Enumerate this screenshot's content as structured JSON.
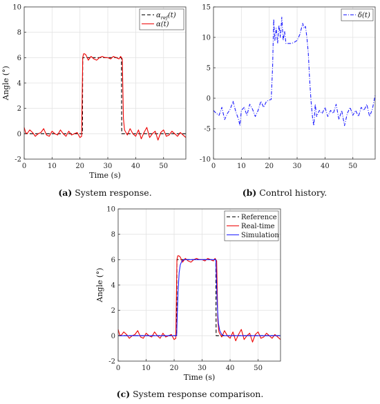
{
  "chart_data": [
    {
      "id": "a",
      "type": "line",
      "caption_tag": "(a)",
      "caption_text": " System response.",
      "xlabel": "Time (s)",
      "ylabel": "Angle (°)",
      "xlim": [
        0,
        58
      ],
      "ylim": [
        -2,
        10
      ],
      "xticks": [
        0,
        10,
        20,
        30,
        40,
        50
      ],
      "yticks": [
        -2,
        0,
        2,
        4,
        6,
        8,
        10
      ],
      "grid": true,
      "legend_position": "top-right",
      "series": [
        {
          "name": "α_ref(t)",
          "legend_base": "α",
          "legend_sub": "ref",
          "legend_tail": "(t)",
          "color": "#000000",
          "dash": "5,3",
          "x": [
            0,
            20.9,
            21.0,
            34.9,
            35.0,
            58
          ],
          "y": [
            0,
            0,
            6,
            6,
            0,
            0
          ]
        },
        {
          "name": "α(t)",
          "legend_base": "α",
          "legend_sub": "",
          "legend_tail": "(t)",
          "color": "#ee0000",
          "dash": "",
          "x": [
            0,
            0.5,
            1,
            2,
            3,
            4,
            5,
            6,
            7,
            8,
            9,
            10,
            11,
            12,
            13,
            14,
            15,
            16,
            17,
            18,
            19,
            20,
            20.6,
            21.0,
            21.3,
            21.7,
            22.2,
            23,
            24,
            25,
            26,
            27,
            28,
            29,
            30,
            31,
            32,
            33,
            34,
            34.6,
            34.9,
            35.2,
            35.6,
            36,
            37,
            38,
            39,
            40,
            41,
            42,
            43,
            44,
            45,
            46,
            47,
            48,
            49,
            50,
            51,
            52,
            53,
            54,
            55,
            56,
            57,
            58
          ],
          "y": [
            0.5,
            0.1,
            0.0,
            0.3,
            0.1,
            -0.2,
            0.0,
            0.1,
            0.4,
            -0.1,
            -0.2,
            0.2,
            0.0,
            -0.1,
            0.3,
            0.0,
            -0.2,
            0.2,
            -0.1,
            0.0,
            0.1,
            -0.3,
            -0.2,
            6.0,
            6.3,
            6.3,
            6.2,
            5.8,
            6.1,
            5.9,
            5.8,
            6.0,
            6.1,
            6.0,
            6.0,
            5.9,
            6.1,
            6.0,
            5.9,
            6.1,
            6.0,
            5.9,
            1.2,
            0.3,
            -0.1,
            0.4,
            0.0,
            -0.2,
            0.3,
            -0.4,
            0.1,
            0.5,
            -0.3,
            0.0,
            0.2,
            -0.5,
            0.1,
            0.3,
            -0.2,
            -0.1,
            0.2,
            0.0,
            -0.2,
            0.1,
            -0.1,
            -0.3
          ]
        }
      ]
    },
    {
      "id": "b",
      "type": "line",
      "caption_tag": "(b)",
      "caption_text": " Control history.",
      "xlabel": "",
      "ylabel": "",
      "xlim": [
        0,
        58
      ],
      "ylim": [
        -10,
        15
      ],
      "xticks": [
        0,
        10,
        20,
        30,
        40,
        50
      ],
      "yticks": [
        -10,
        -5,
        0,
        5,
        10,
        15
      ],
      "grid": true,
      "legend_position": "top-right",
      "series": [
        {
          "name": "δ(t)",
          "legend_base": "δ",
          "legend_sub": "",
          "legend_tail": "(t)",
          "color": "#1a1aff",
          "dash": "5,2,1,2",
          "x": [
            0,
            1,
            2,
            3,
            4,
            5,
            6,
            7,
            8,
            9,
            9.5,
            10,
            11,
            12,
            13,
            14,
            15,
            16,
            17,
            18,
            19,
            20,
            20.7,
            21.2,
            21.6,
            22.0,
            22.5,
            23,
            23.5,
            24,
            24.5,
            25,
            25.5,
            26,
            27,
            28,
            29,
            30,
            31,
            32,
            32.5,
            33,
            33.5,
            34,
            34.5,
            35,
            35.3,
            35.6,
            36,
            36.5,
            37,
            38,
            39,
            40,
            41,
            42,
            43,
            44,
            45,
            46,
            47,
            48,
            49,
            50,
            51,
            52,
            53,
            54,
            55,
            56,
            57,
            58
          ],
          "y": [
            -2.0,
            -2.5,
            -2.8,
            -1.5,
            -3.5,
            -2.5,
            -1.8,
            -0.5,
            -2.2,
            -3.5,
            -4.5,
            -2.0,
            -1.5,
            -2.8,
            -1.0,
            -1.8,
            -3.0,
            -2.0,
            -0.5,
            -1.5,
            -0.5,
            -0.3,
            -0.2,
            5.0,
            13.0,
            9.5,
            11.5,
            9.0,
            12.0,
            10.0,
            13.3,
            9.5,
            11.0,
            9.0,
            9.0,
            9.0,
            9.2,
            9.5,
            10.5,
            12.3,
            11.5,
            11.8,
            10.0,
            7.5,
            3.0,
            -0.5,
            -2.0,
            -3.5,
            -4.5,
            -1.0,
            -3.0,
            -2.0,
            -2.5,
            -1.5,
            -3.0,
            -2.0,
            -2.5,
            -1.0,
            -3.5,
            -2.0,
            -4.5,
            -2.5,
            -1.5,
            -2.8,
            -2.0,
            -3.0,
            -1.5,
            -2.0,
            -1.0,
            -3.0,
            -1.8,
            0.5
          ]
        }
      ]
    },
    {
      "id": "c",
      "type": "line",
      "caption_tag": "(c)",
      "caption_text": " System response comparison.",
      "xlabel": "Time (s)",
      "ylabel": "Angle (°)",
      "xlim": [
        0,
        58
      ],
      "ylim": [
        -2,
        10
      ],
      "xticks": [
        0,
        10,
        20,
        30,
        40,
        50
      ],
      "yticks": [
        -2,
        0,
        2,
        4,
        6,
        8,
        10
      ],
      "grid": true,
      "legend_position": "top-right",
      "series": [
        {
          "name": "Reference",
          "legend_base": "Reference",
          "legend_sub": "",
          "legend_tail": "",
          "color": "#000000",
          "dash": "5,3",
          "x": [
            0,
            20.9,
            21.0,
            34.9,
            35.0,
            58
          ],
          "y": [
            0,
            0,
            6,
            6,
            0,
            0
          ]
        },
        {
          "name": "Real-time",
          "legend_base": "Real-time",
          "legend_sub": "",
          "legend_tail": "",
          "color": "#ee0000",
          "dash": "",
          "x": [
            0,
            0.5,
            1,
            2,
            3,
            4,
            5,
            6,
            7,
            8,
            9,
            10,
            11,
            12,
            13,
            14,
            15,
            16,
            17,
            18,
            19,
            20,
            20.6,
            21.0,
            21.3,
            21.7,
            22.2,
            23,
            24,
            25,
            26,
            27,
            28,
            29,
            30,
            31,
            32,
            33,
            34,
            34.6,
            34.9,
            35.2,
            35.6,
            36,
            37,
            38,
            39,
            40,
            41,
            42,
            43,
            44,
            45,
            46,
            47,
            48,
            49,
            50,
            51,
            52,
            53,
            54,
            55,
            56,
            57,
            58
          ],
          "y": [
            0.5,
            0.1,
            0.0,
            0.3,
            0.1,
            -0.2,
            0.0,
            0.1,
            0.4,
            -0.1,
            -0.2,
            0.2,
            0.0,
            -0.1,
            0.3,
            0.0,
            -0.2,
            0.2,
            -0.1,
            0.0,
            0.1,
            -0.3,
            -0.2,
            6.0,
            6.3,
            6.3,
            6.2,
            5.8,
            6.1,
            5.9,
            5.8,
            6.0,
            6.1,
            6.0,
            6.0,
            5.9,
            6.1,
            6.0,
            5.9,
            6.1,
            6.0,
            5.9,
            1.2,
            0.3,
            -0.1,
            0.4,
            0.0,
            -0.2,
            0.3,
            -0.4,
            0.1,
            0.5,
            -0.3,
            0.0,
            0.2,
            -0.5,
            0.1,
            0.3,
            -0.2,
            -0.1,
            0.2,
            0.0,
            -0.2,
            0.1,
            -0.1,
            -0.3
          ]
        },
        {
          "name": "Simulation",
          "legend_base": "Simulation",
          "legend_sub": "",
          "legend_tail": "",
          "color": "#1a1aff",
          "dash": "",
          "x": [
            0,
            20.9,
            21.1,
            21.4,
            21.8,
            22.2,
            22.8,
            23.5,
            25,
            34.9,
            35.1,
            35.4,
            35.8,
            36.3,
            37,
            38,
            58
          ],
          "y": [
            0,
            0,
            1.5,
            3.5,
            5.0,
            5.6,
            5.9,
            6.0,
            6.0,
            6.0,
            4.5,
            2.5,
            1.0,
            0.4,
            0.1,
            0.0,
            0
          ]
        }
      ]
    }
  ]
}
